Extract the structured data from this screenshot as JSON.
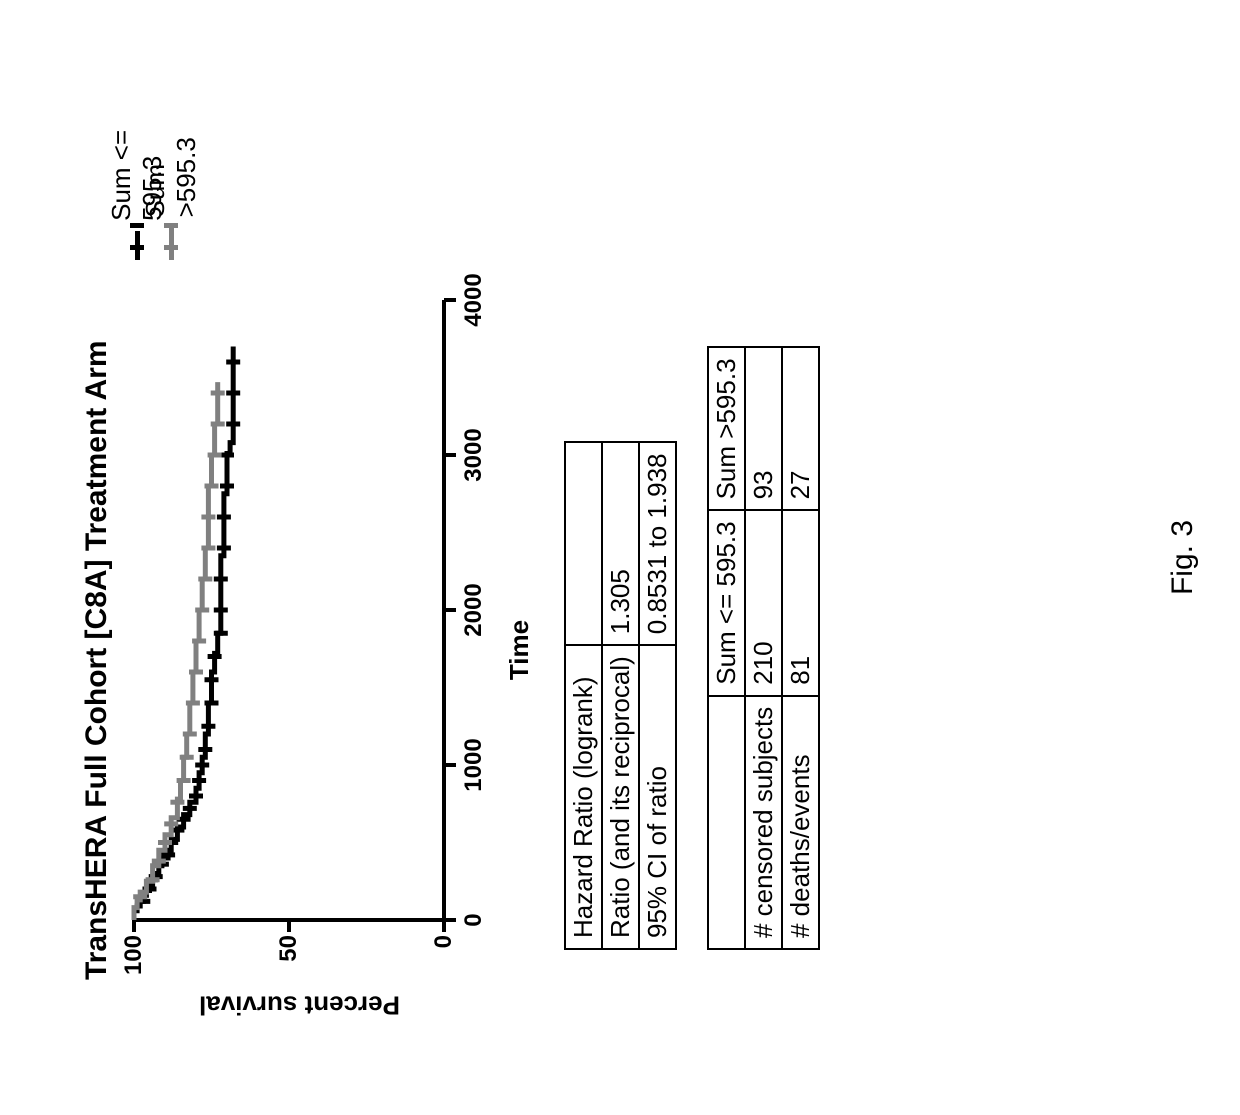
{
  "figure_caption": "Fig. 3",
  "chart": {
    "type": "kaplan-meier-survival",
    "title": "TransHERA Full Cohort [C8A] Treatment Arm",
    "title_fontsize": 30,
    "title_fontweight": 700,
    "background_color": "#ffffff",
    "axis_color": "#000000",
    "axis_linewidth": 4,
    "xlabel": "Time",
    "ylabel": "Percent survival",
    "label_fontsize": 26,
    "label_fontweight": 700,
    "tick_fontsize": 24,
    "tick_fontweight": 700,
    "xlim": [
      0,
      4000
    ],
    "ylim": [
      0,
      100
    ],
    "xticks": [
      0,
      1000,
      2000,
      3000,
      4000
    ],
    "yticks": [
      0,
      50,
      100
    ],
    "legend": {
      "entries": [
        {
          "label": "Sum <= 595.3",
          "color": "#000000",
          "marker": "censor-tick"
        },
        {
          "label": "Sum >595.3",
          "color": "#808080",
          "marker": "censor-tick"
        }
      ],
      "fontsize": 26
    },
    "series": [
      {
        "name": "Sum <= 595.3",
        "color": "#000000",
        "line_width": 5,
        "step_points": [
          [
            0,
            100
          ],
          [
            40,
            100
          ],
          [
            60,
            99
          ],
          [
            90,
            98
          ],
          [
            120,
            97
          ],
          [
            160,
            96
          ],
          [
            190,
            95
          ],
          [
            220,
            94
          ],
          [
            260,
            93
          ],
          [
            300,
            92
          ],
          [
            350,
            91
          ],
          [
            400,
            89
          ],
          [
            450,
            88
          ],
          [
            520,
            86
          ],
          [
            600,
            84
          ],
          [
            680,
            82
          ],
          [
            760,
            80
          ],
          [
            850,
            79
          ],
          [
            950,
            78
          ],
          [
            1050,
            77
          ],
          [
            1200,
            76
          ],
          [
            1400,
            75
          ],
          [
            1600,
            74
          ],
          [
            1720,
            73
          ],
          [
            1850,
            72
          ],
          [
            2000,
            72
          ],
          [
            2270,
            72
          ],
          [
            2350,
            71
          ],
          [
            2670,
            71
          ],
          [
            2750,
            70
          ],
          [
            2890,
            70
          ],
          [
            3010,
            69
          ],
          [
            3080,
            68
          ],
          [
            3400,
            68
          ],
          [
            3700,
            68
          ]
        ],
        "censor_times": [
          120,
          200,
          280,
          360,
          420,
          500,
          580,
          650,
          720,
          800,
          900,
          1000,
          1100,
          1250,
          1400,
          1550,
          1700,
          1850,
          2000,
          2200,
          2400,
          2600,
          2800,
          3000,
          3200,
          3400,
          3600
        ]
      },
      {
        "name": "Sum >595.3",
        "color": "#808080",
        "line_width": 5,
        "step_points": [
          [
            0,
            100
          ],
          [
            50,
            100
          ],
          [
            80,
            99
          ],
          [
            130,
            98
          ],
          [
            180,
            96
          ],
          [
            250,
            94
          ],
          [
            350,
            92
          ],
          [
            450,
            90
          ],
          [
            550,
            88
          ],
          [
            660,
            86
          ],
          [
            780,
            85
          ],
          [
            900,
            84
          ],
          [
            1050,
            83
          ],
          [
            1200,
            82
          ],
          [
            1400,
            81
          ],
          [
            1600,
            80
          ],
          [
            1800,
            79
          ],
          [
            2000,
            78
          ],
          [
            2200,
            77
          ],
          [
            2400,
            76
          ],
          [
            2600,
            76
          ],
          [
            2800,
            75
          ],
          [
            3000,
            74
          ],
          [
            3200,
            73
          ],
          [
            3470,
            73
          ]
        ],
        "censor_times": [
          150,
          260,
          380,
          500,
          620,
          760,
          900,
          1050,
          1200,
          1400,
          1600,
          1800,
          2000,
          2200,
          2400,
          2600,
          2800,
          3000,
          3200,
          3400
        ]
      }
    ]
  },
  "hazard_table": {
    "rows": [
      [
        "Hazard Ratio (logrank)",
        ""
      ],
      [
        "Ratio (and its reciprocal)",
        "1.305"
      ],
      [
        "95% CI of ratio",
        "0.8531 to 1.938"
      ]
    ]
  },
  "subjects_table": {
    "columns": [
      "",
      "Sum <= 595.3",
      "Sum >595.3"
    ],
    "rows": [
      [
        "# censored subjects",
        "210",
        "93"
      ],
      [
        "# deaths/events",
        "81",
        "27"
      ]
    ]
  }
}
